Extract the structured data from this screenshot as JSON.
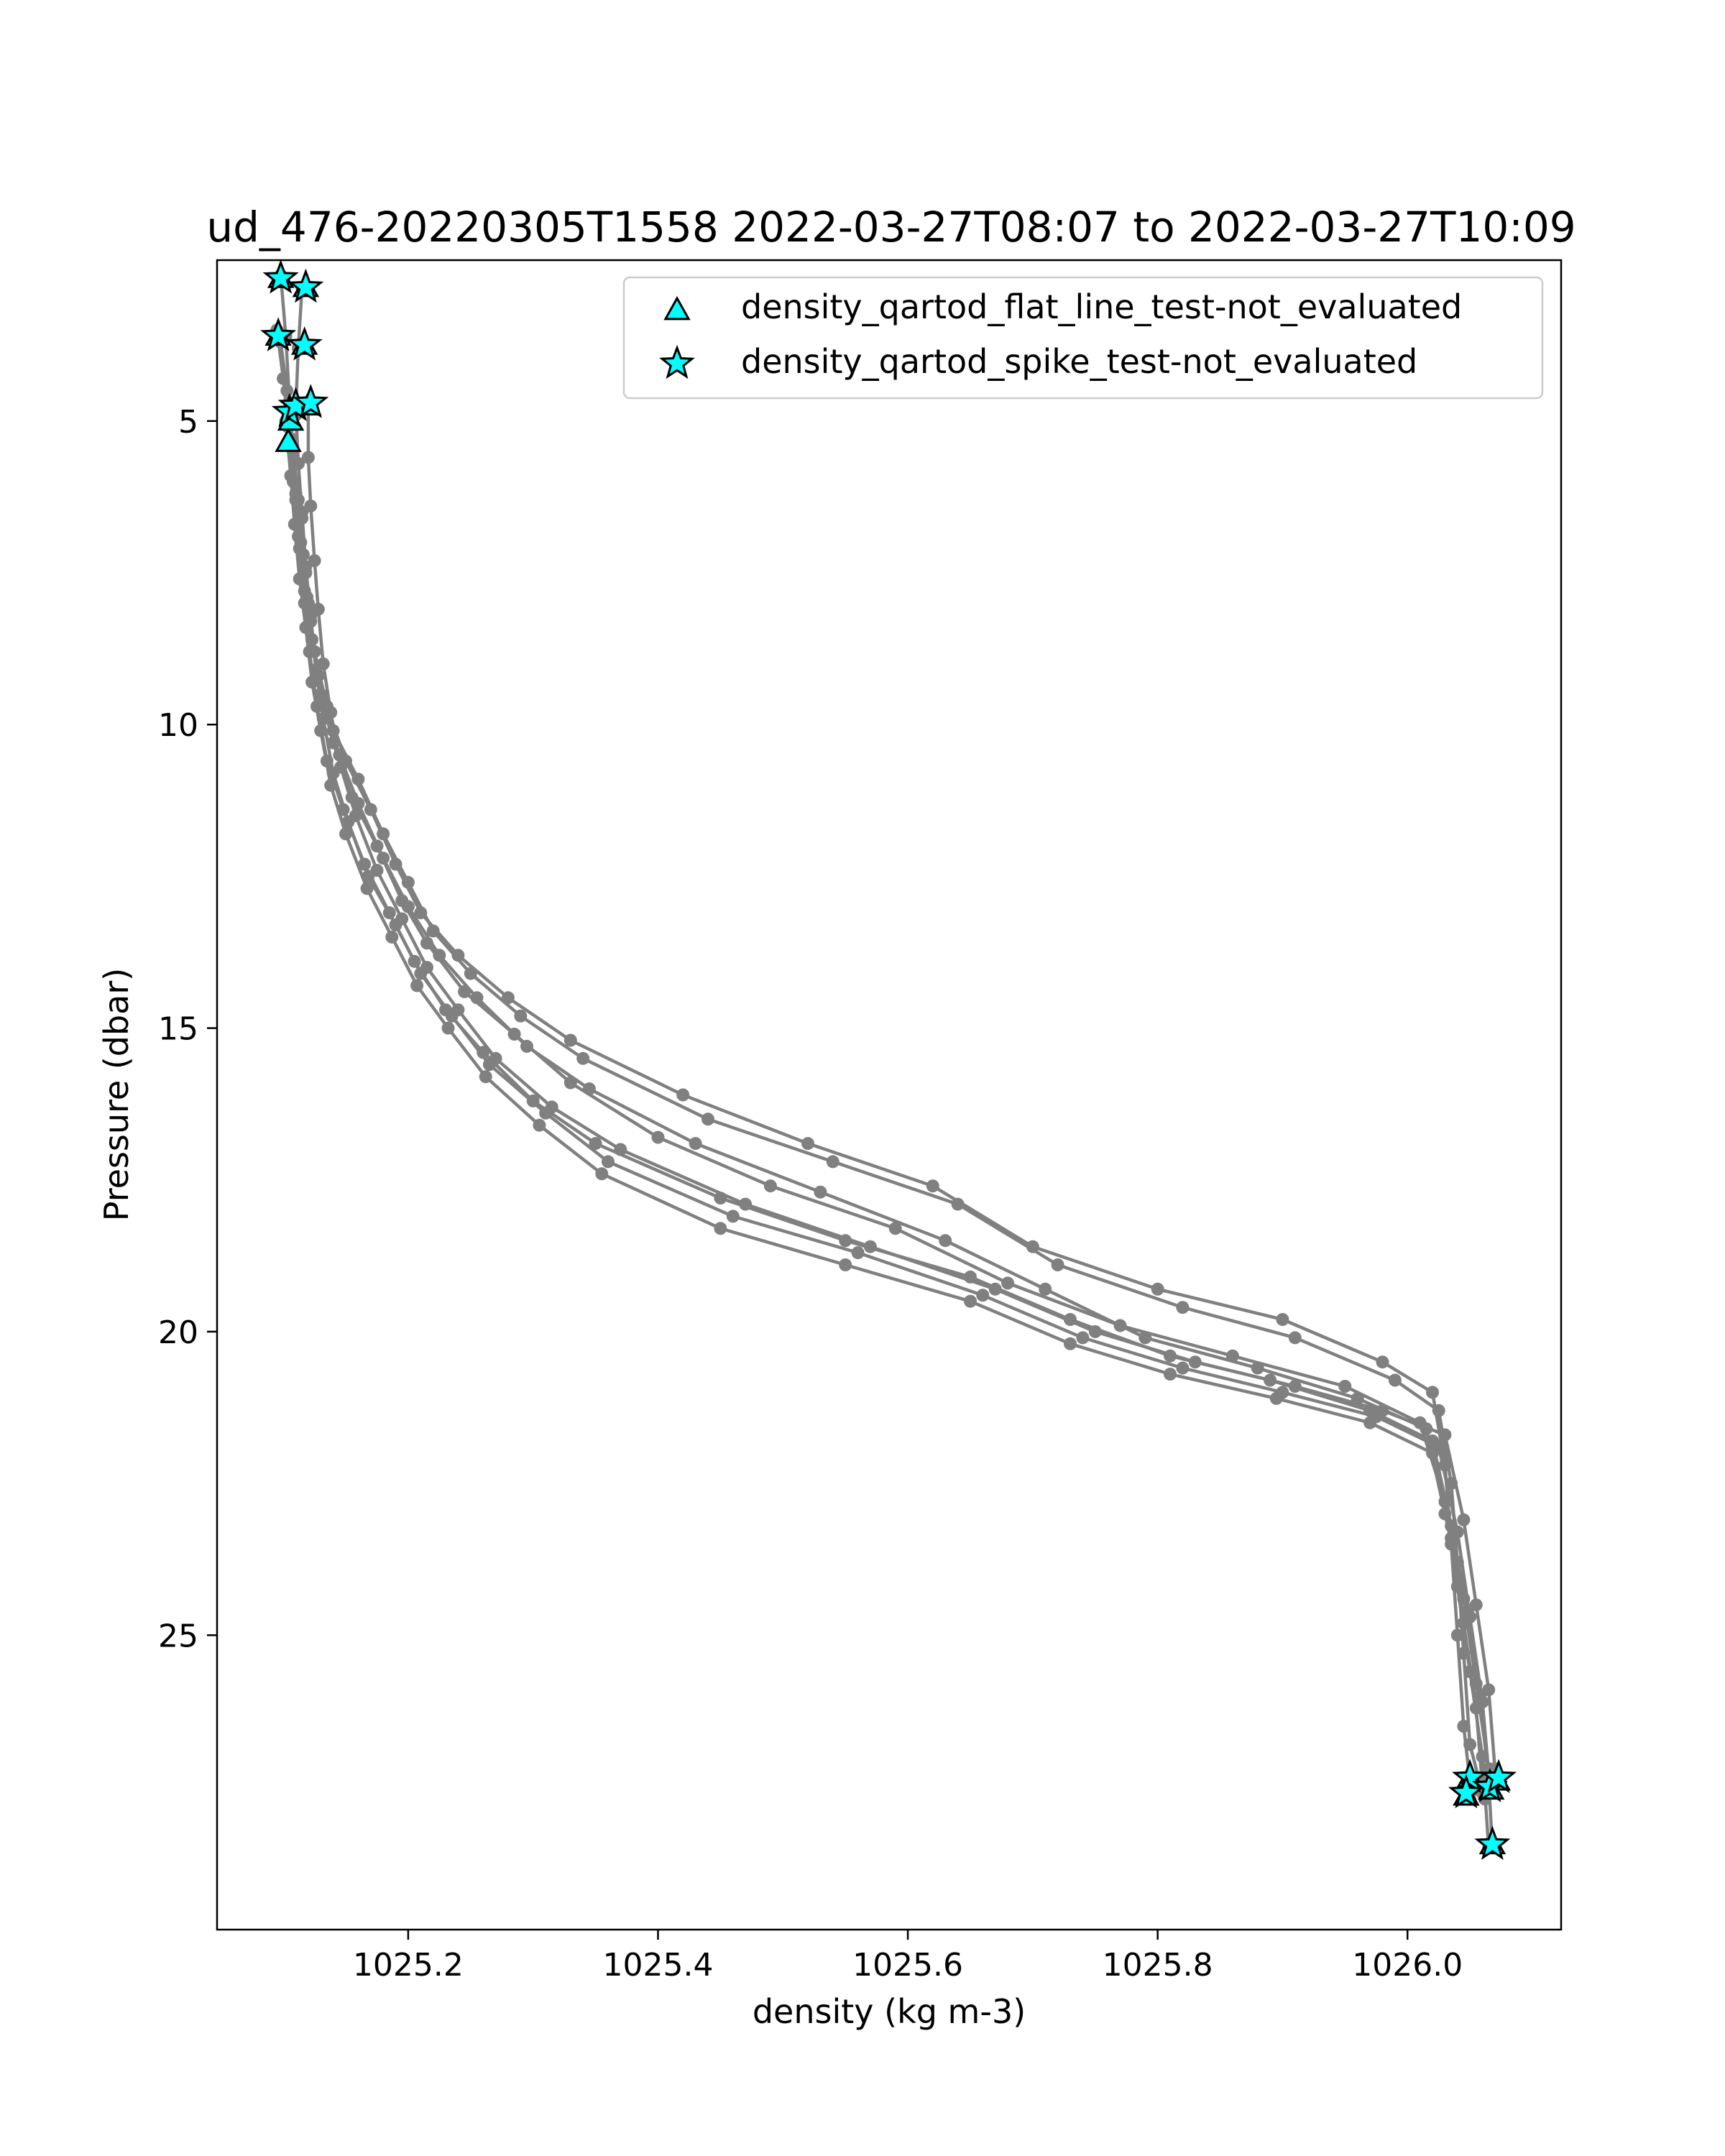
{
  "chart_data": {
    "type": "line",
    "title": "ud_476-20220305T1558 2022-03-27T08:07 to 2022-03-27T10:09",
    "xlabel": "density (kg m-3)",
    "ylabel": "Pressure (dbar)",
    "xlim": [
      1025.047,
      1026.123
    ],
    "ylim": [
      29.85,
      2.35
    ],
    "y_inverted": true,
    "grid": false,
    "xticks": [
      {
        "value": 1025.2,
        "label": "1025.2"
      },
      {
        "value": 1025.4,
        "label": "1025.4"
      },
      {
        "value": 1025.6,
        "label": "1025.6"
      },
      {
        "value": 1025.8,
        "label": "1025.8"
      },
      {
        "value": 1026.0,
        "label": "1026.0"
      }
    ],
    "yticks": [
      {
        "value": 5,
        "label": "5"
      },
      {
        "value": 10,
        "label": "10"
      },
      {
        "value": 15,
        "label": "15"
      },
      {
        "value": 20,
        "label": "20"
      },
      {
        "value": 25,
        "label": "25"
      }
    ],
    "line_color": "#808080",
    "marker_color": "#00ffff",
    "legend": {
      "position": "upper-right",
      "entries": [
        {
          "marker": "triangle",
          "label": "density_qartod_flat_line_test-not_evaluated"
        },
        {
          "marker": "star",
          "label": "density_qartod_spike_test-not_evaluated"
        }
      ]
    },
    "profiles": [
      {
        "x": [
          1025.098,
          1025.102,
          1025.105,
          1025.108,
          1025.112,
          1025.116,
          1025.12,
          1025.125,
          1025.135,
          1025.15,
          1025.17,
          1025.19,
          1025.21,
          1025.24,
          1025.28,
          1025.33,
          1025.42,
          1025.52,
          1025.62,
          1025.7,
          1025.8,
          1025.9,
          1025.98,
          1026.02,
          1026.03,
          1026.035,
          1026.04,
          1026.045,
          1026.05
        ],
        "y": [
          2.6,
          3.6,
          4.7,
          5.5,
          6.3,
          7.2,
          8.0,
          8.8,
          9.7,
          10.6,
          11.4,
          12.3,
          13.1,
          13.8,
          14.5,
          15.2,
          16.1,
          16.9,
          17.6,
          18.6,
          19.3,
          19.8,
          20.5,
          21.0,
          22.2,
          23.5,
          25.0,
          26.5,
          27.4
        ]
      },
      {
        "x": [
          1025.115,
          1025.112,
          1025.11,
          1025.112,
          1025.115,
          1025.118,
          1025.122,
          1025.128,
          1025.14,
          1025.16,
          1025.18,
          1025.2,
          1025.22,
          1025.25,
          1025.29,
          1025.34,
          1025.44,
          1025.54,
          1025.64,
          1025.72,
          1025.82,
          1025.91,
          1025.99,
          1026.025,
          1026.035,
          1026.04,
          1026.045,
          1026.05,
          1026.06
        ],
        "y": [
          2.8,
          3.8,
          4.8,
          5.7,
          6.6,
          7.5,
          8.3,
          9.2,
          10.1,
          10.9,
          11.8,
          12.6,
          13.4,
          14.1,
          14.8,
          15.5,
          16.5,
          17.2,
          17.9,
          18.9,
          19.6,
          20.1,
          20.8,
          21.3,
          22.5,
          23.8,
          25.3,
          26.8,
          27.6
        ]
      },
      {
        "x": [
          1025.095,
          1025.1,
          1025.104,
          1025.108,
          1025.112,
          1025.117,
          1025.123,
          1025.13,
          1025.14,
          1025.155,
          1025.175,
          1025.195,
          1025.215,
          1025.245,
          1025.285,
          1025.33,
          1025.4,
          1025.49,
          1025.59,
          1025.68,
          1025.77,
          1025.86,
          1025.95,
          1026.01,
          1026.03,
          1026.04,
          1026.05,
          1026.06,
          1026.065
        ],
        "y": [
          3.5,
          4.3,
          5.1,
          6.0,
          6.9,
          7.8,
          8.6,
          9.5,
          10.3,
          11.2,
          12.0,
          12.9,
          13.6,
          14.4,
          15.1,
          15.9,
          16.8,
          17.6,
          18.3,
          19.2,
          19.9,
          20.4,
          20.9,
          21.5,
          22.8,
          24.2,
          25.6,
          27.0,
          28.5
        ]
      },
      {
        "x": [
          1025.098,
          1025.103,
          1025.107,
          1025.11,
          1025.114,
          1025.119,
          1025.125,
          1025.132,
          1025.145,
          1025.16,
          1025.18,
          1025.2,
          1025.225,
          1025.255,
          1025.295,
          1025.345,
          1025.43,
          1025.53,
          1025.63,
          1025.71,
          1025.79,
          1025.88,
          1025.96,
          1026.015,
          1026.03,
          1026.045,
          1026.055,
          1026.065,
          1026.07
        ],
        "y": [
          3.7,
          4.5,
          5.3,
          6.2,
          7.0,
          7.9,
          8.8,
          9.6,
          10.5,
          11.3,
          12.2,
          13.0,
          13.8,
          14.5,
          15.3,
          16.0,
          16.9,
          17.7,
          18.5,
          19.3,
          20.1,
          20.6,
          21.1,
          21.6,
          23.0,
          24.4,
          25.8,
          27.2,
          27.4
        ]
      },
      {
        "x": [
          1025.105,
          1025.108,
          1025.11,
          1025.113,
          1025.117,
          1025.121,
          1025.127,
          1025.135,
          1025.148,
          1025.165,
          1025.185,
          1025.205,
          1025.23,
          1025.26,
          1025.3,
          1025.35,
          1025.45,
          1025.55,
          1025.65,
          1025.73,
          1025.81,
          1025.89,
          1025.97,
          1026.02,
          1026.035,
          1026.048,
          1026.058,
          1026.065,
          1026.068
        ],
        "y": [
          4.8,
          5.5,
          6.3,
          7.1,
          8.0,
          8.8,
          9.7,
          10.6,
          11.4,
          12.3,
          13.1,
          13.9,
          14.7,
          15.4,
          16.2,
          16.9,
          17.8,
          18.5,
          19.1,
          19.8,
          20.4,
          20.8,
          21.3,
          21.8,
          23.2,
          24.6,
          26.0,
          27.4,
          28.5
        ]
      },
      {
        "x": [
          1025.11,
          1025.112,
          1025.115,
          1025.118,
          1025.122,
          1025.126,
          1025.132,
          1025.14,
          1025.152,
          1025.168,
          1025.19,
          1025.21,
          1025.235,
          1025.265,
          1025.31,
          1025.36,
          1025.46,
          1025.56,
          1025.66,
          1025.74,
          1025.82,
          1025.9,
          1025.975,
          1026.025,
          1026.04,
          1026.05,
          1026.06,
          1026.066,
          1026.062
        ],
        "y": [
          4.9,
          5.7,
          6.5,
          7.4,
          8.2,
          9.1,
          9.9,
          10.8,
          11.6,
          12.5,
          13.3,
          14.1,
          14.8,
          15.6,
          16.4,
          17.2,
          18.1,
          18.7,
          19.4,
          20.1,
          20.6,
          21.0,
          21.4,
          21.9,
          23.3,
          24.7,
          26.1,
          27.5,
          27.7
        ]
      },
      {
        "x": [
          1025.12,
          1025.12,
          1025.122,
          1025.125,
          1025.128,
          1025.132,
          1025.138,
          1025.146,
          1025.158,
          1025.175,
          1025.195,
          1025.215,
          1025.24,
          1025.27,
          1025.315,
          1025.37,
          1025.47,
          1025.57,
          1025.67,
          1025.75,
          1025.83,
          1025.91,
          1025.98,
          1026.03,
          1026.045,
          1026.055,
          1026.065,
          1026.07,
          1026.072
        ],
        "y": [
          4.8,
          5.6,
          6.4,
          7.3,
          8.1,
          9.0,
          9.8,
          10.7,
          11.5,
          12.4,
          13.2,
          14.0,
          14.7,
          15.5,
          16.3,
          17.0,
          17.9,
          18.6,
          19.3,
          20.0,
          20.5,
          20.9,
          21.3,
          21.7,
          23.1,
          24.5,
          25.9,
          27.2,
          27.4
        ]
      },
      {
        "x": [
          1025.102,
          1025.106,
          1025.109,
          1025.113,
          1025.118,
          1025.123,
          1025.13,
          1025.138,
          1025.15,
          1025.167,
          1025.187,
          1025.207,
          1025.232,
          1025.262,
          1025.305,
          1025.355,
          1025.45,
          1025.55,
          1025.65,
          1025.73,
          1025.81,
          1025.895,
          1025.97,
          1026.02,
          1026.035,
          1026.045,
          1026.055,
          1026.06,
          1026.05
        ],
        "y": [
          5.0,
          5.9,
          6.7,
          7.6,
          8.4,
          9.3,
          10.1,
          11.0,
          11.8,
          12.7,
          13.5,
          14.3,
          15.0,
          15.8,
          16.6,
          17.4,
          18.3,
          18.9,
          19.5,
          20.2,
          20.7,
          21.1,
          21.5,
          22.0,
          23.4,
          24.8,
          26.2,
          27.5,
          27.7
        ]
      }
    ],
    "flat_line_markers": [
      {
        "x": 1025.098,
        "y": 2.65
      },
      {
        "x": 1025.118,
        "y": 2.8
      },
      {
        "x": 1025.096,
        "y": 3.6
      },
      {
        "x": 1025.117,
        "y": 3.75
      },
      {
        "x": 1025.106,
        "y": 5.0
      },
      {
        "x": 1025.104,
        "y": 5.35
      },
      {
        "x": 1025.12,
        "y": 4.75
      },
      {
        "x": 1026.05,
        "y": 27.35
      },
      {
        "x": 1026.047,
        "y": 27.65
      },
      {
        "x": 1026.067,
        "y": 27.55
      },
      {
        "x": 1026.068,
        "y": 28.45
      },
      {
        "x": 1026.072,
        "y": 27.4
      }
    ],
    "spike_markers": [
      {
        "x": 1025.098,
        "y": 2.65
      },
      {
        "x": 1025.118,
        "y": 2.8
      },
      {
        "x": 1025.096,
        "y": 3.6
      },
      {
        "x": 1025.117,
        "y": 3.75
      },
      {
        "x": 1025.105,
        "y": 4.85
      },
      {
        "x": 1025.11,
        "y": 4.75
      },
      {
        "x": 1025.122,
        "y": 4.7
      },
      {
        "x": 1026.05,
        "y": 27.35
      },
      {
        "x": 1026.047,
        "y": 27.6
      },
      {
        "x": 1026.066,
        "y": 27.5
      },
      {
        "x": 1026.068,
        "y": 28.45
      },
      {
        "x": 1026.073,
        "y": 27.35
      }
    ]
  }
}
